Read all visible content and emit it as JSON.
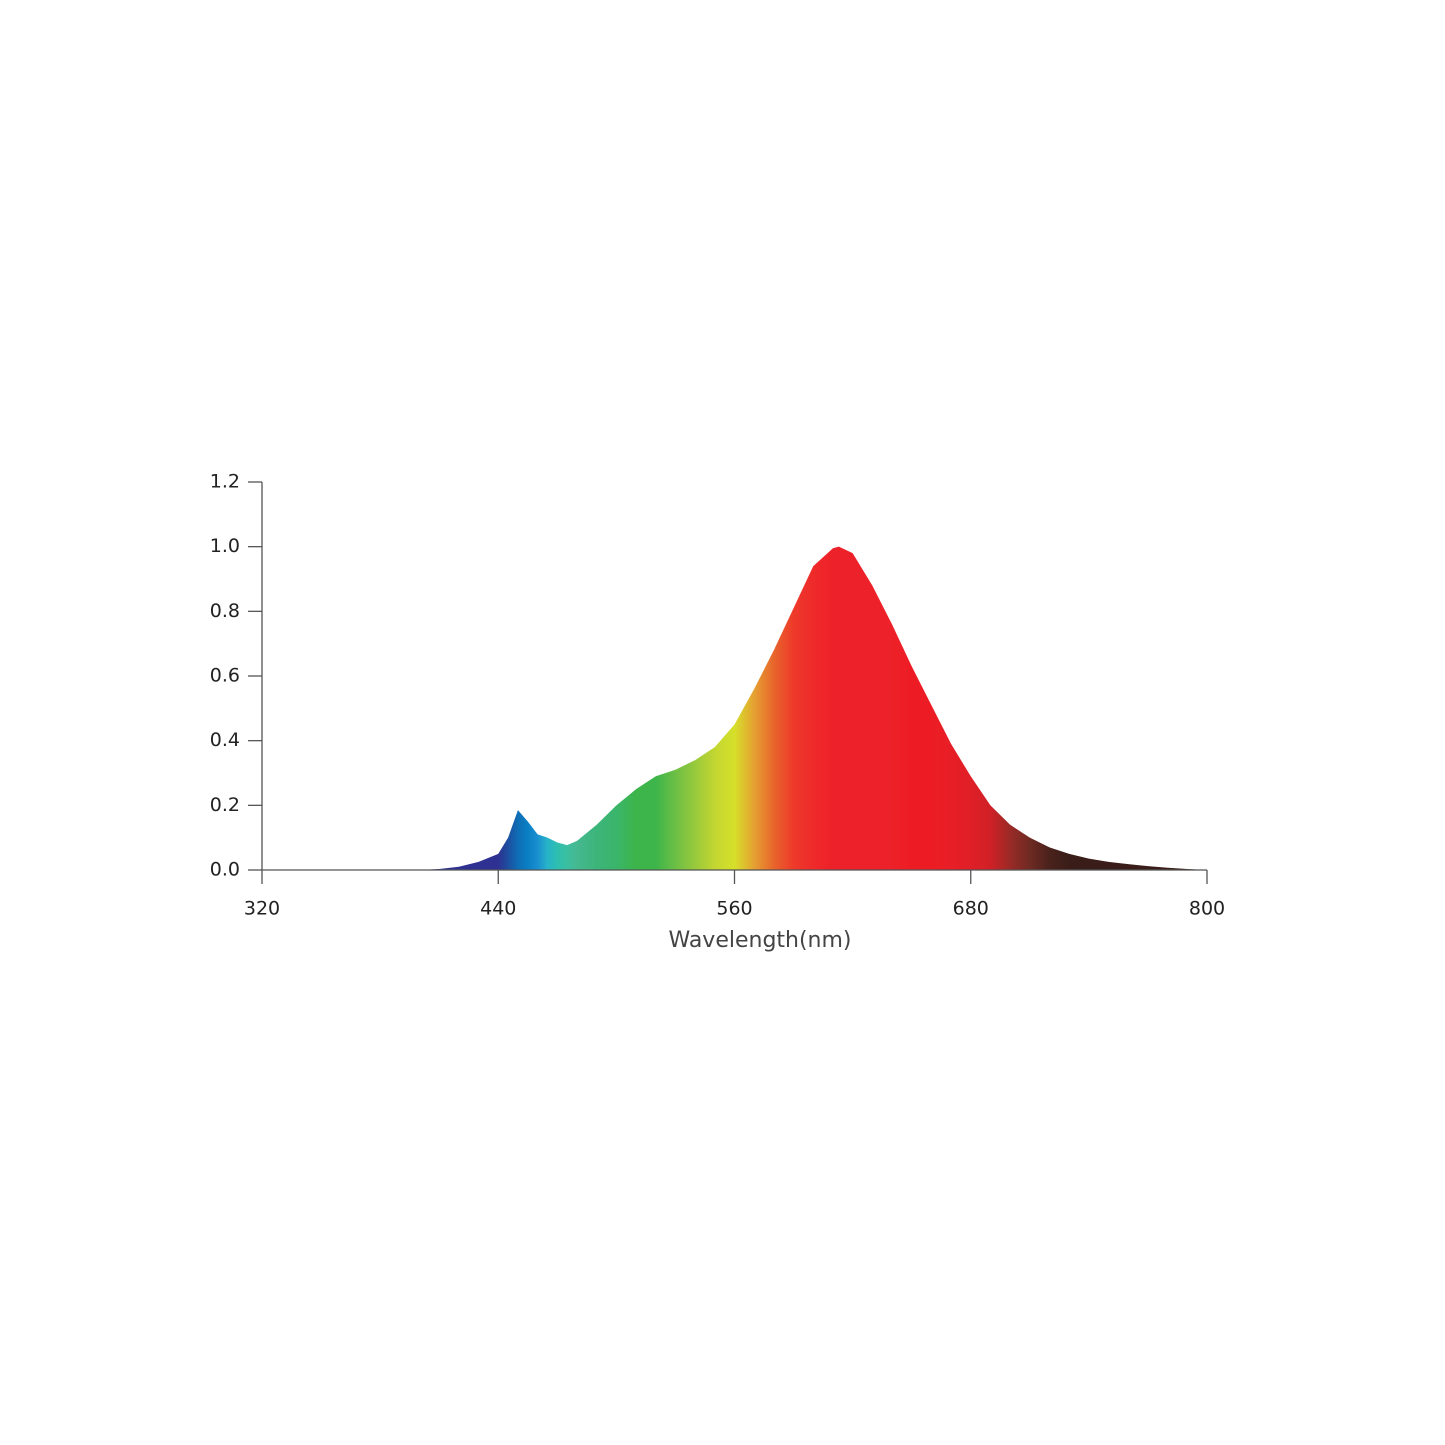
{
  "chart_data": {
    "type": "area",
    "x_label": "Wavelength(nm)",
    "x": [
      320,
      340,
      360,
      380,
      400,
      410,
      420,
      430,
      440,
      445,
      450,
      455,
      460,
      465,
      470,
      475,
      480,
      490,
      500,
      510,
      520,
      530,
      540,
      550,
      560,
      570,
      580,
      590,
      600,
      610,
      613,
      620,
      630,
      640,
      650,
      660,
      670,
      680,
      690,
      700,
      710,
      720,
      730,
      740,
      750,
      760,
      770,
      780,
      790,
      800
    ],
    "values": [
      0,
      0,
      0,
      0,
      0,
      0.003,
      0.01,
      0.025,
      0.05,
      0.1,
      0.185,
      0.15,
      0.11,
      0.1,
      0.085,
      0.077,
      0.09,
      0.14,
      0.2,
      0.25,
      0.29,
      0.31,
      0.34,
      0.38,
      0.45,
      0.56,
      0.68,
      0.81,
      0.94,
      0.995,
      1.0,
      0.98,
      0.88,
      0.76,
      0.63,
      0.51,
      0.39,
      0.29,
      0.2,
      0.14,
      0.1,
      0.07,
      0.05,
      0.035,
      0.025,
      0.018,
      0.012,
      0.007,
      0.003,
      0
    ],
    "colors": [
      "#2e3192",
      "#2e3192",
      "#2e3192",
      "#2e3192",
      "#2e3192",
      "#2e3192",
      "#2e3192",
      "#2e3192",
      "#2e3192",
      "#1c4fa0",
      "#0f6db5",
      "#0a7fc4",
      "#1a8fd0",
      "#27b3c8",
      "#2ebfb0",
      "#3bbfa0",
      "#45b890",
      "#3cb57a",
      "#3ab56a",
      "#3db54a",
      "#3db54a",
      "#6cbf45",
      "#98c93c",
      "#c3d631",
      "#d6e02a",
      "#e5a032",
      "#e8652c",
      "#ee3a2a",
      "#ee2a2a",
      "#ed2129",
      "#ed2129",
      "#ed2129",
      "#ed2129",
      "#ed2129",
      "#ed1c24",
      "#ed1c24",
      "#e81e26",
      "#e01f27",
      "#d02027",
      "#9a2a26",
      "#6e2a22",
      "#4a221c",
      "#3a1d18",
      "#3a1d18",
      "#3a1d18",
      "#3a1d18",
      "#3a1d18",
      "#3a1d18",
      "#3a1d18",
      "#3a1d18"
    ],
    "line_color": "#555555",
    "xlim": [
      320,
      800
    ],
    "xticks": [
      320,
      440,
      560,
      680,
      800
    ],
    "ylim": [
      0,
      1.2
    ],
    "yticks": [
      {
        "value": 0,
        "label": "0.0"
      },
      0.2,
      0.4,
      0.6,
      0.8,
      {
        "value": 1,
        "label": "1.0"
      },
      1.2
    ]
  }
}
